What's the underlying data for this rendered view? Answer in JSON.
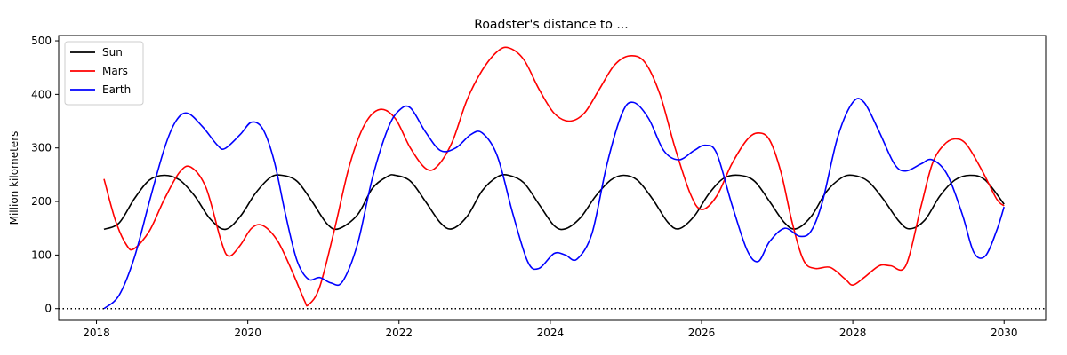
{
  "chart_data": {
    "type": "line",
    "title": "Roadster's distance to ...",
    "xlabel": "",
    "ylabel": "Million kilometers",
    "xlim": [
      2017.5,
      2030.55
    ],
    "ylim": [
      -22,
      510
    ],
    "x_ticks": [
      2018,
      2020,
      2022,
      2024,
      2026,
      2028,
      2030
    ],
    "x_tick_labels": [
      "2018",
      "2020",
      "2022",
      "2024",
      "2026",
      "2028",
      "2030"
    ],
    "y_ticks": [
      0,
      100,
      200,
      300,
      400,
      500
    ],
    "y_tick_labels": [
      "0",
      "100",
      "200",
      "300",
      "400",
      "500"
    ],
    "grid": false,
    "legend": "upper-left",
    "reference_line": {
      "y": 0,
      "style": "dotted",
      "color": "#000000"
    },
    "series": [
      {
        "name": "Sun",
        "color": "#000000",
        "points": [
          [
            2018.1,
            148
          ],
          [
            2018.3,
            160
          ],
          [
            2018.5,
            205
          ],
          [
            2018.7,
            240
          ],
          [
            2018.9,
            249
          ],
          [
            2019.1,
            240
          ],
          [
            2019.3,
            210
          ],
          [
            2019.5,
            168
          ],
          [
            2019.7,
            148
          ],
          [
            2019.9,
            172
          ],
          [
            2020.1,
            215
          ],
          [
            2020.3,
            245
          ],
          [
            2020.45,
            249
          ],
          [
            2020.65,
            238
          ],
          [
            2020.85,
            200
          ],
          [
            2021.05,
            158
          ],
          [
            2021.2,
            149
          ],
          [
            2021.45,
            175
          ],
          [
            2021.65,
            225
          ],
          [
            2021.85,
            247
          ],
          [
            2021.95,
            249
          ],
          [
            2022.15,
            238
          ],
          [
            2022.35,
            200
          ],
          [
            2022.55,
            160
          ],
          [
            2022.7,
            149
          ],
          [
            2022.9,
            172
          ],
          [
            2023.1,
            220
          ],
          [
            2023.3,
            246
          ],
          [
            2023.45,
            249
          ],
          [
            2023.65,
            235
          ],
          [
            2023.85,
            195
          ],
          [
            2024.05,
            155
          ],
          [
            2024.2,
            149
          ],
          [
            2024.4,
            170
          ],
          [
            2024.6,
            210
          ],
          [
            2024.8,
            240
          ],
          [
            2024.97,
            249
          ],
          [
            2025.15,
            240
          ],
          [
            2025.35,
            205
          ],
          [
            2025.55,
            162
          ],
          [
            2025.7,
            149
          ],
          [
            2025.9,
            172
          ],
          [
            2026.1,
            215
          ],
          [
            2026.3,
            244
          ],
          [
            2026.5,
            249
          ],
          [
            2026.7,
            238
          ],
          [
            2026.9,
            200
          ],
          [
            2027.1,
            160
          ],
          [
            2027.25,
            149
          ],
          [
            2027.45,
            172
          ],
          [
            2027.65,
            218
          ],
          [
            2027.85,
            244
          ],
          [
            2028.0,
            249
          ],
          [
            2028.2,
            238
          ],
          [
            2028.4,
            205
          ],
          [
            2028.6,
            165
          ],
          [
            2028.75,
            149
          ],
          [
            2028.95,
            165
          ],
          [
            2029.15,
            210
          ],
          [
            2029.35,
            240
          ],
          [
            2029.55,
            249
          ],
          [
            2029.75,
            240
          ],
          [
            2030.0,
            195
          ]
        ]
      },
      {
        "name": "Mars",
        "color": "#ff0000",
        "points": [
          [
            2018.1,
            242
          ],
          [
            2018.25,
            165
          ],
          [
            2018.4,
            118
          ],
          [
            2018.5,
            112
          ],
          [
            2018.7,
            145
          ],
          [
            2018.9,
            205
          ],
          [
            2019.1,
            255
          ],
          [
            2019.25,
            264
          ],
          [
            2019.45,
            225
          ],
          [
            2019.65,
            125
          ],
          [
            2019.75,
            98
          ],
          [
            2019.9,
            118
          ],
          [
            2020.05,
            150
          ],
          [
            2020.2,
            155
          ],
          [
            2020.4,
            125
          ],
          [
            2020.6,
            65
          ],
          [
            2020.75,
            15
          ],
          [
            2020.8,
            7
          ],
          [
            2020.95,
            40
          ],
          [
            2021.15,
            150
          ],
          [
            2021.35,
            270
          ],
          [
            2021.55,
            345
          ],
          [
            2021.75,
            372
          ],
          [
            2021.95,
            355
          ],
          [
            2022.15,
            300
          ],
          [
            2022.35,
            262
          ],
          [
            2022.5,
            265
          ],
          [
            2022.7,
            310
          ],
          [
            2022.9,
            390
          ],
          [
            2023.1,
            445
          ],
          [
            2023.3,
            480
          ],
          [
            2023.45,
            487
          ],
          [
            2023.65,
            465
          ],
          [
            2023.85,
            410
          ],
          [
            2024.05,
            365
          ],
          [
            2024.25,
            350
          ],
          [
            2024.45,
            365
          ],
          [
            2024.65,
            410
          ],
          [
            2024.85,
            455
          ],
          [
            2025.05,
            472
          ],
          [
            2025.25,
            460
          ],
          [
            2025.45,
            400
          ],
          [
            2025.65,
            300
          ],
          [
            2025.85,
            215
          ],
          [
            2026.0,
            185
          ],
          [
            2026.2,
            210
          ],
          [
            2026.4,
            270
          ],
          [
            2026.6,
            315
          ],
          [
            2026.75,
            328
          ],
          [
            2026.9,
            315
          ],
          [
            2027.05,
            255
          ],
          [
            2027.2,
            160
          ],
          [
            2027.35,
            90
          ],
          [
            2027.5,
            75
          ],
          [
            2027.7,
            77
          ],
          [
            2027.9,
            55
          ],
          [
            2028.0,
            44
          ],
          [
            2028.15,
            58
          ],
          [
            2028.35,
            80
          ],
          [
            2028.5,
            80
          ],
          [
            2028.7,
            80
          ],
          [
            2028.9,
            190
          ],
          [
            2029.05,
            270
          ],
          [
            2029.2,
            305
          ],
          [
            2029.35,
            317
          ],
          [
            2029.5,
            307
          ],
          [
            2029.7,
            260
          ],
          [
            2029.9,
            205
          ],
          [
            2030.0,
            192
          ]
        ]
      },
      {
        "name": "Earth",
        "color": "#0000ff",
        "points": [
          [
            2018.1,
            0
          ],
          [
            2018.3,
            25
          ],
          [
            2018.5,
            95
          ],
          [
            2018.7,
            200
          ],
          [
            2018.9,
            300
          ],
          [
            2019.05,
            350
          ],
          [
            2019.2,
            365
          ],
          [
            2019.4,
            340
          ],
          [
            2019.6,
            305
          ],
          [
            2019.7,
            299
          ],
          [
            2019.9,
            325
          ],
          [
            2020.05,
            348
          ],
          [
            2020.2,
            335
          ],
          [
            2020.35,
            275
          ],
          [
            2020.5,
            175
          ],
          [
            2020.65,
            90
          ],
          [
            2020.8,
            55
          ],
          [
            2020.95,
            58
          ],
          [
            2021.1,
            48
          ],
          [
            2021.25,
            50
          ],
          [
            2021.45,
            120
          ],
          [
            2021.65,
            245
          ],
          [
            2021.85,
            335
          ],
          [
            2022.0,
            370
          ],
          [
            2022.15,
            375
          ],
          [
            2022.35,
            330
          ],
          [
            2022.55,
            295
          ],
          [
            2022.75,
            300
          ],
          [
            2022.95,
            325
          ],
          [
            2023.1,
            328
          ],
          [
            2023.3,
            285
          ],
          [
            2023.5,
            180
          ],
          [
            2023.7,
            88
          ],
          [
            2023.85,
            75
          ],
          [
            2024.05,
            103
          ],
          [
            2024.2,
            100
          ],
          [
            2024.35,
            92
          ],
          [
            2024.55,
            140
          ],
          [
            2024.75,
            270
          ],
          [
            2024.95,
            365
          ],
          [
            2025.1,
            385
          ],
          [
            2025.3,
            355
          ],
          [
            2025.5,
            295
          ],
          [
            2025.7,
            278
          ],
          [
            2025.9,
            295
          ],
          [
            2026.05,
            305
          ],
          [
            2026.2,
            290
          ],
          [
            2026.4,
            195
          ],
          [
            2026.6,
            110
          ],
          [
            2026.75,
            88
          ],
          [
            2026.9,
            125
          ],
          [
            2027.1,
            150
          ],
          [
            2027.3,
            135
          ],
          [
            2027.45,
            145
          ],
          [
            2027.6,
            200
          ],
          [
            2027.8,
            320
          ],
          [
            2028.0,
            385
          ],
          [
            2028.15,
            385
          ],
          [
            2028.35,
            330
          ],
          [
            2028.55,
            270
          ],
          [
            2028.7,
            257
          ],
          [
            2028.9,
            270
          ],
          [
            2029.05,
            278
          ],
          [
            2029.25,
            250
          ],
          [
            2029.45,
            175
          ],
          [
            2029.6,
            105
          ],
          [
            2029.75,
            98
          ],
          [
            2029.9,
            145
          ],
          [
            2030.0,
            190
          ]
        ]
      }
    ]
  }
}
